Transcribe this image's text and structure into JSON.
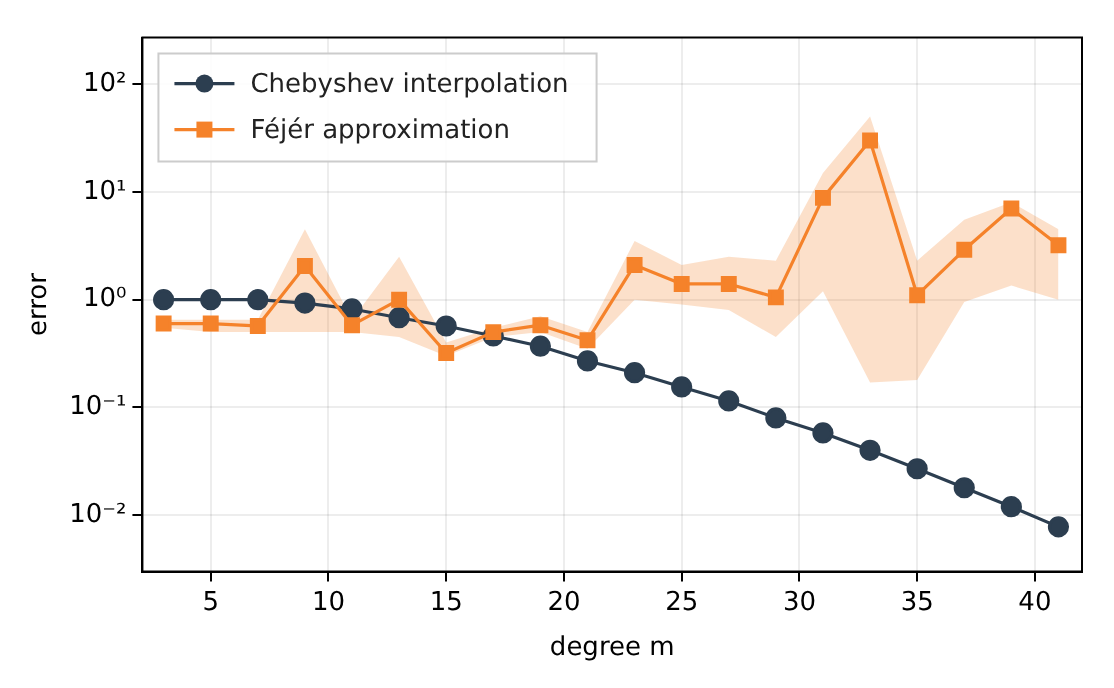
{
  "chart_data": {
    "type": "line",
    "xlabel": "degree m",
    "ylabel": "error",
    "log": "y",
    "grid": true,
    "legend": "top left",
    "line_style": "solid",
    "x": [
      3,
      5,
      7,
      9,
      11,
      13,
      15,
      17,
      19,
      21,
      23,
      25,
      27,
      29,
      31,
      33,
      35,
      37,
      39,
      41
    ],
    "xlim": [
      2.1,
      42
    ],
    "xticks": [
      5,
      10,
      15,
      20,
      25,
      30,
      35,
      40
    ],
    "ylim": [
      0.003,
      270
    ],
    "yticks": [
      {
        "value": 0.01,
        "label": "10⁻²"
      },
      {
        "value": 0.1,
        "label": "10⁻¹"
      },
      {
        "value": 1,
        "label": "10⁰"
      },
      {
        "value": 10,
        "label": "10¹"
      },
      {
        "value": 100,
        "label": "10²"
      }
    ],
    "series": [
      {
        "name": "Chebyshev interpolation",
        "color": "#2c3e50",
        "marker": "circle",
        "values": [
          1.0,
          1.0,
          1.0,
          0.93,
          0.82,
          0.68,
          0.57,
          0.46,
          0.37,
          0.27,
          0.21,
          0.155,
          0.115,
          0.08,
          0.058,
          0.04,
          0.027,
          0.018,
          0.012,
          0.0078
        ]
      },
      {
        "name": "Féjér approximation",
        "color": "#f5822a",
        "marker": "square",
        "values": [
          0.6,
          0.6,
          0.57,
          2.05,
          0.58,
          1.0,
          0.32,
          0.5,
          0.58,
          0.42,
          2.1,
          1.4,
          1.4,
          1.05,
          8.8,
          30,
          1.1,
          2.9,
          7,
          3.2
        ],
        "lower": [
          0.55,
          0.5,
          0.5,
          0.5,
          0.5,
          0.45,
          0.3,
          0.45,
          0.5,
          0.35,
          1.0,
          0.9,
          0.8,
          0.45,
          1.2,
          0.17,
          0.18,
          0.95,
          1.35,
          1.0
        ],
        "upper": [
          0.65,
          0.65,
          0.65,
          4.5,
          0.65,
          2.5,
          0.4,
          0.55,
          0.7,
          0.5,
          3.5,
          2.1,
          2.5,
          2.3,
          15,
          50,
          2.3,
          5.5,
          8,
          4.5
        ]
      }
    ]
  }
}
